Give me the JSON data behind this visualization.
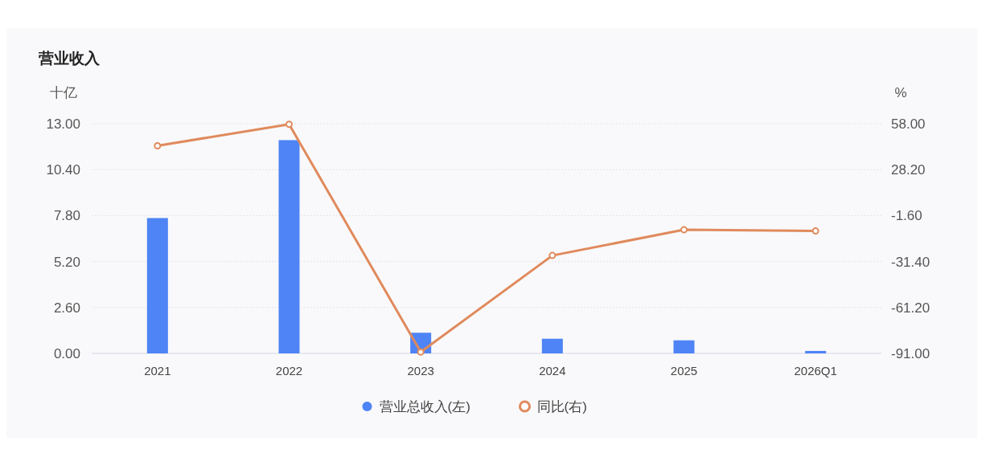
{
  "chart_data": {
    "type": "bar",
    "title": "营业收入",
    "ylabel": "十亿",
    "y2label": "%",
    "categories": [
      "2021",
      "2022",
      "2023",
      "2024",
      "2025",
      "2026Q1"
    ],
    "series": [
      {
        "name": "营业总收入(左)",
        "color": "#4e84f5",
        "values": [
          7.66,
          12.07,
          1.17,
          0.83,
          0.74,
          0.14
        ]
      },
      {
        "name": "同比(右)",
        "type": "line",
        "axis": "y2",
        "color": "#e08a5c",
        "values": [
          43.7,
          57.6,
          -90.1,
          -27.5,
          -10.8,
          -11.6
        ]
      }
    ],
    "ylim": [
      0,
      13
    ],
    "yticks": [
      {
        "value": 0,
        "label": "0.00"
      },
      {
        "value": 2.6,
        "label": "2.60"
      },
      {
        "value": 5.2,
        "label": "5.20"
      },
      {
        "value": 7.8,
        "label": "7.80"
      },
      {
        "value": 10.4,
        "label": "10.40"
      },
      {
        "value": 13,
        "label": "13.00"
      }
    ],
    "y2lim": [
      -91,
      58
    ],
    "y2ticks": [
      {
        "value": -91,
        "label": "-91.00"
      },
      {
        "value": -61.2,
        "label": "-61.20"
      },
      {
        "value": -31.4,
        "label": "-31.40"
      },
      {
        "value": -1.6,
        "label": "-1.60"
      },
      {
        "value": 28.2,
        "label": "28.20"
      },
      {
        "value": 58,
        "label": "58.00"
      }
    ],
    "grid": "y",
    "legend": "bottom",
    "marker": "circle",
    "line_style": "solid"
  }
}
